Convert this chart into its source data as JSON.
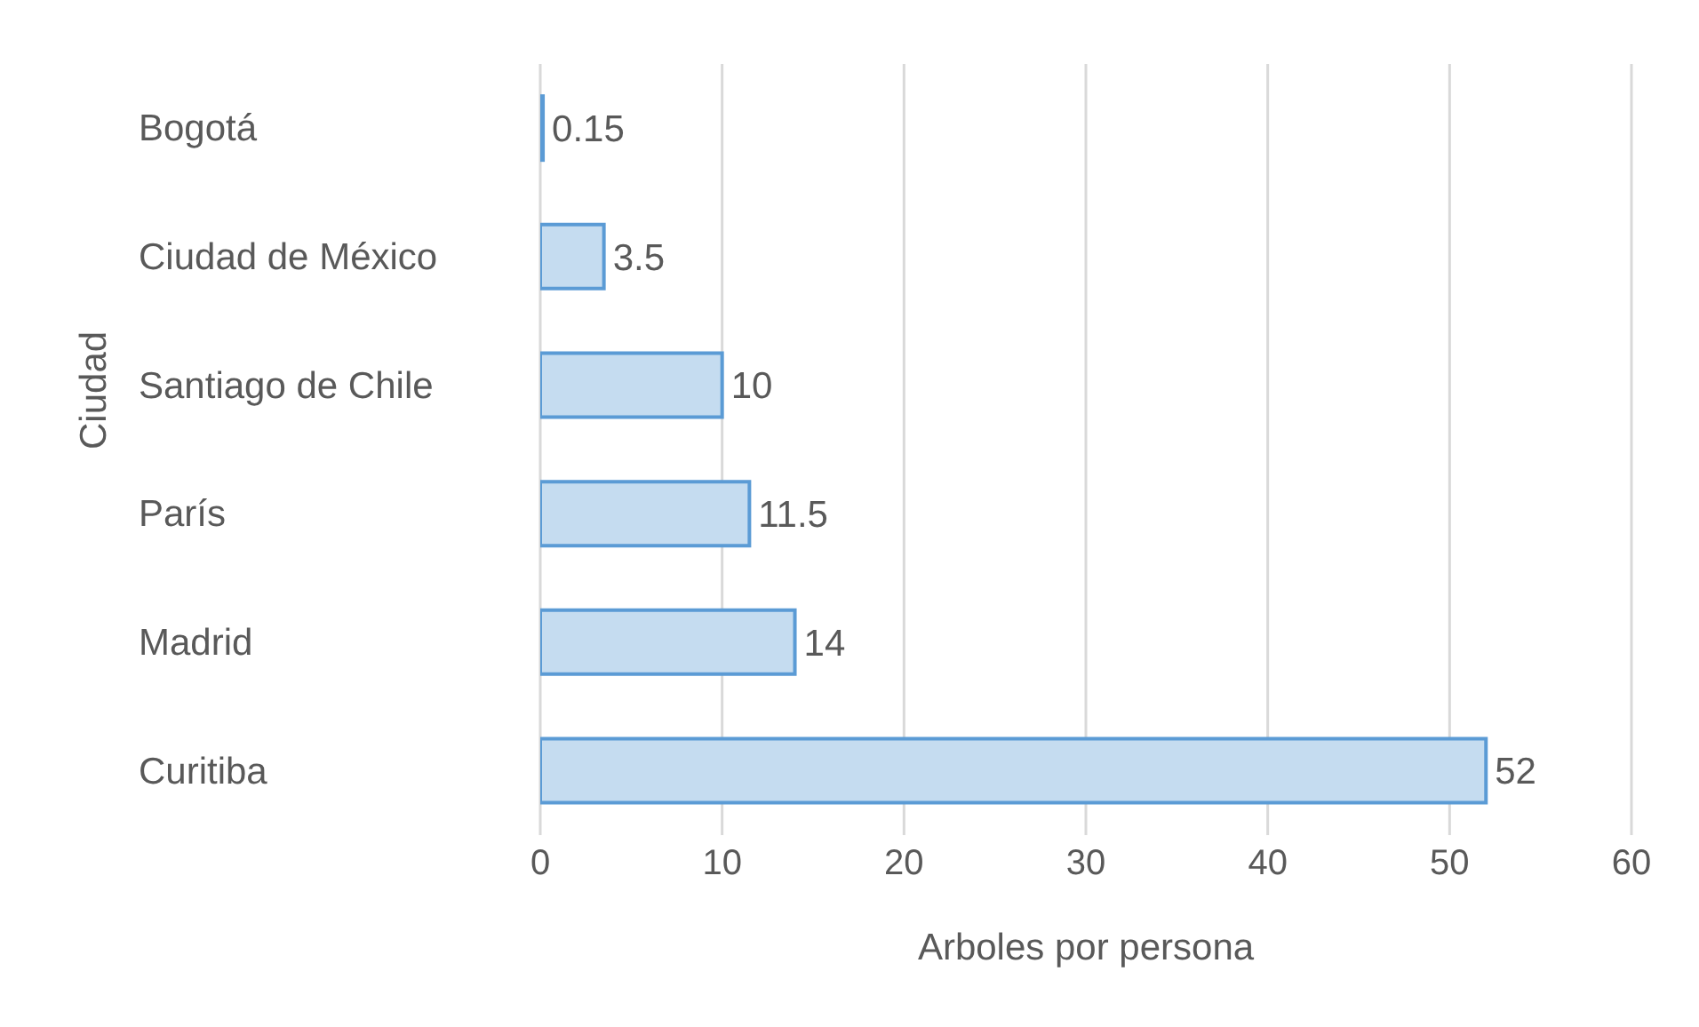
{
  "chart_data": {
    "type": "bar",
    "orientation": "horizontal",
    "xlabel": "Arboles por persona",
    "ylabel": "Ciudad",
    "categories": [
      "Bogotá",
      "Ciudad de México",
      "Santiago de Chile",
      "París",
      "Madrid",
      "Curitiba"
    ],
    "values": [
      0.15,
      3.5,
      10,
      11.5,
      14,
      52
    ],
    "color": "#c5dcf0",
    "xlim": [
      0,
      60
    ],
    "xticks": [
      0,
      10,
      20,
      30,
      40,
      50,
      60
    ],
    "grid": "x",
    "data_labels": true
  }
}
